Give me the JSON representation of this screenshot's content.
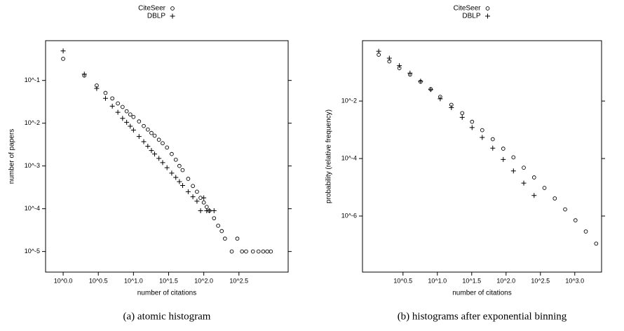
{
  "chart_data": [
    {
      "type": "scatter",
      "caption": "(a) atomic histogram",
      "xlabel": "number of citations",
      "ylabel": "number of papers",
      "log_x": true,
      "log_y": true,
      "xlim": [
        0.5623,
        1585
      ],
      "ylim": [
        3.3e-06,
        0.85
      ],
      "xticks": [
        {
          "value": 1,
          "label": "10^0.0"
        },
        {
          "value": 3.162,
          "label": "10^0.5"
        },
        {
          "value": 10,
          "label": "10^1.0"
        },
        {
          "value": 31.62,
          "label": "10^1.5"
        },
        {
          "value": 100,
          "label": "10^2.0"
        },
        {
          "value": 316.2,
          "label": "10^2.5"
        }
      ],
      "yticks": [
        {
          "value": 0.1,
          "label": "10^-1"
        },
        {
          "value": 0.01,
          "label": "10^-2"
        },
        {
          "value": 0.001,
          "label": "10^-3"
        },
        {
          "value": 0.0001,
          "label": "10^-4"
        },
        {
          "value": 1e-05,
          "label": "10^-5"
        }
      ],
      "series": [
        {
          "name": "CiteSeer",
          "marker": "circle",
          "color": "#000000",
          "x": [
            1,
            2,
            3,
            4,
            5,
            6,
            7,
            8,
            9,
            10,
            12,
            14,
            16,
            18,
            20,
            23,
            26,
            30,
            35,
            40,
            45,
            50,
            60,
            70,
            80,
            90,
            100,
            110,
            120,
            140,
            160,
            180,
            200,
            250,
            300,
            350,
            400,
            500,
            600,
            700,
            800,
            900
          ],
          "values": [
            0.32,
            0.13,
            0.076,
            0.051,
            0.038,
            0.029,
            0.024,
            0.019,
            0.016,
            0.014,
            0.011,
            0.0086,
            0.0071,
            0.0059,
            0.0051,
            0.0041,
            0.0034,
            0.0027,
            0.0019,
            0.0014,
            0.001,
            0.0008,
            0.0005,
            0.00034,
            0.00025,
            0.00018,
            0.00014,
            0.00011,
            9e-05,
            6e-05,
            4e-05,
            3e-05,
            2e-05,
            1e-05,
            2e-05,
            1e-05,
            1e-05,
            1e-05,
            1e-05,
            1e-05,
            1e-05,
            1e-05
          ]
        },
        {
          "name": "DBLP",
          "marker": "plus",
          "color": "#000000",
          "x": [
            1,
            2,
            3,
            4,
            5,
            6,
            7,
            8,
            9,
            10,
            12,
            14,
            16,
            18,
            20,
            23,
            26,
            30,
            35,
            40,
            45,
            50,
            60,
            70,
            80,
            90,
            100,
            110,
            120,
            140
          ],
          "values": [
            0.49,
            0.14,
            0.065,
            0.038,
            0.025,
            0.018,
            0.013,
            0.0105,
            0.0085,
            0.0069,
            0.0049,
            0.0037,
            0.0029,
            0.0023,
            0.0019,
            0.0015,
            0.0012,
            0.00091,
            0.00068,
            0.00054,
            0.00043,
            0.00035,
            0.00025,
            0.00019,
            0.00015,
            9e-05,
            0.00018,
            9e-05,
            9e-05,
            9e-05
          ]
        }
      ]
    },
    {
      "type": "scatter",
      "caption": "(b) histograms after exponential binning",
      "xlabel": "number of citations",
      "ylabel": "probability (relative frequency)",
      "log_x": true,
      "log_y": true,
      "xlim": [
        0.813,
        2455
      ],
      "ylim": [
        1.12e-08,
        1.26
      ],
      "xticks": [
        {
          "value": 3.162,
          "label": "10^0.5"
        },
        {
          "value": 10,
          "label": "10^1.0"
        },
        {
          "value": 31.62,
          "label": "10^1.5"
        },
        {
          "value": 100,
          "label": "10^2.0"
        },
        {
          "value": 316.2,
          "label": "10^2.5"
        },
        {
          "value": 1000,
          "label": "10^3.0"
        }
      ],
      "yticks": [
        {
          "value": 0.01,
          "label": "10^-2"
        },
        {
          "value": 0.0001,
          "label": "10^-4"
        },
        {
          "value": 1e-06,
          "label": "10^-6"
        }
      ],
      "series": [
        {
          "name": "CiteSeer",
          "marker": "circle",
          "color": "#000000",
          "x": [
            1.4,
            2,
            2.8,
            4,
            5.7,
            8,
            11,
            16,
            23,
            32,
            45,
            64,
            91,
            128,
            181,
            256,
            362,
            512,
            724,
            1024,
            1448,
            2048
          ],
          "values": [
            0.41,
            0.24,
            0.14,
            0.083,
            0.047,
            0.026,
            0.014,
            0.0074,
            0.0038,
            0.0019,
            0.00097,
            0.00047,
            0.00022,
            0.00011,
            4.8e-05,
            2.2e-05,
            9.5e-06,
            4.1e-06,
            1.7e-06,
            7.1e-07,
            2.9e-07,
            1.1e-07
          ]
        },
        {
          "name": "DBLP",
          "marker": "plus",
          "color": "#000000",
          "x": [
            1.4,
            2,
            2.8,
            4,
            5.7,
            8,
            11,
            16,
            23,
            32,
            45,
            64,
            91,
            128,
            181,
            256
          ],
          "values": [
            0.54,
            0.31,
            0.17,
            0.094,
            0.049,
            0.025,
            0.012,
            0.0059,
            0.0027,
            0.0012,
            0.00054,
            0.00023,
            9.3e-05,
            3.7e-05,
            1.4e-05,
            5.2e-06
          ]
        }
      ]
    }
  ]
}
